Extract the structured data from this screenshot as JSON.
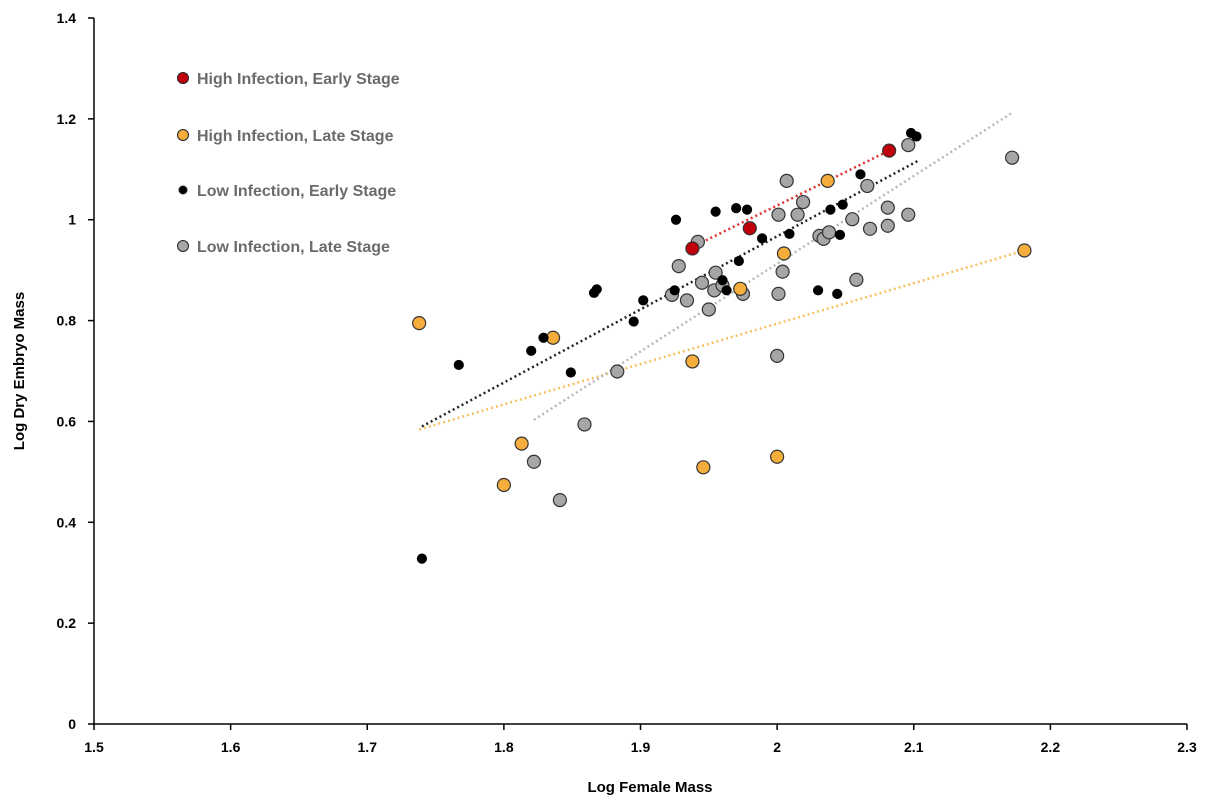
{
  "chart_data": {
    "type": "scatter",
    "title": "",
    "xlabel": "Log Female Mass",
    "ylabel": "Log Dry Embryo Mass",
    "xlim": [
      1.5,
      2.3
    ],
    "ylim": [
      0,
      1.4
    ],
    "xticks": [
      "1.5",
      "1.6",
      "1.7",
      "1.8",
      "1.9",
      "2",
      "2.1",
      "2.2",
      "2.3"
    ],
    "yticks": [
      "0",
      "0.2",
      "0.4",
      "0.6",
      "0.8",
      "1",
      "1.2",
      "1.4"
    ],
    "grid": false,
    "legend_position": "top-left",
    "series": [
      {
        "name": "High Infection, Early Stage",
        "color": "#c0000b",
        "marker_size": "large",
        "points": [
          [
            1.938,
            0.943
          ],
          [
            1.98,
            0.983
          ],
          [
            2.082,
            1.137
          ]
        ],
        "trendline": [
          [
            1.938,
            0.946
          ],
          [
            2.082,
            1.137
          ]
        ]
      },
      {
        "name": "High Infection, Late Stage",
        "color": "#f5ad3b",
        "marker_size": "large",
        "points": [
          [
            1.738,
            0.795
          ],
          [
            1.813,
            0.556
          ],
          [
            1.8,
            0.474
          ],
          [
            1.836,
            0.766
          ],
          [
            1.938,
            0.719
          ],
          [
            1.946,
            0.509
          ],
          [
            1.973,
            0.863
          ],
          [
            2.0,
            0.53
          ],
          [
            2.005,
            0.933
          ],
          [
            2.037,
            1.077
          ],
          [
            2.181,
            0.939
          ]
        ],
        "trendline": [
          [
            1.738,
            0.584
          ],
          [
            2.181,
            0.939
          ]
        ]
      },
      {
        "name": "Low Infection, Early Stage",
        "color": "#000000",
        "marker_size": "small",
        "points": [
          [
            1.74,
            0.328
          ],
          [
            1.767,
            0.712
          ],
          [
            1.82,
            0.74
          ],
          [
            1.829,
            0.766
          ],
          [
            1.849,
            0.697
          ],
          [
            1.866,
            0.855
          ],
          [
            1.868,
            0.862
          ],
          [
            1.895,
            0.798
          ],
          [
            1.902,
            0.84
          ],
          [
            1.926,
            1.0
          ],
          [
            1.925,
            0.86
          ],
          [
            1.955,
            1.016
          ],
          [
            1.96,
            0.88
          ],
          [
            1.963,
            0.86
          ],
          [
            1.97,
            1.023
          ],
          [
            1.972,
            0.918
          ],
          [
            1.978,
            1.02
          ],
          [
            1.989,
            0.963
          ],
          [
            2.009,
            0.972
          ],
          [
            2.03,
            0.86
          ],
          [
            2.039,
            1.02
          ],
          [
            2.044,
            0.853
          ],
          [
            2.046,
            0.97
          ],
          [
            2.048,
            1.03
          ],
          [
            2.061,
            1.09
          ],
          [
            2.098,
            1.172
          ],
          [
            2.102,
            1.165
          ]
        ],
        "trendline": [
          [
            1.74,
            0.59
          ],
          [
            2.104,
            1.118
          ]
        ]
      },
      {
        "name": "Low Infection, Late Stage",
        "color": "#a6a6a6",
        "marker_size": "large",
        "points": [
          [
            1.822,
            0.52
          ],
          [
            1.841,
            0.444
          ],
          [
            1.859,
            0.594
          ],
          [
            1.883,
            0.699
          ],
          [
            1.923,
            0.851
          ],
          [
            1.928,
            0.908
          ],
          [
            1.934,
            0.84
          ],
          [
            1.942,
            0.956
          ],
          [
            1.945,
            0.875
          ],
          [
            1.95,
            0.822
          ],
          [
            1.954,
            0.86
          ],
          [
            1.955,
            0.895
          ],
          [
            1.96,
            0.87
          ],
          [
            1.975,
            0.853
          ],
          [
            2.0,
            0.73
          ],
          [
            2.001,
            0.853
          ],
          [
            2.001,
            1.01
          ],
          [
            2.004,
            0.897
          ],
          [
            2.007,
            1.077
          ],
          [
            2.015,
            1.01
          ],
          [
            2.019,
            1.035
          ],
          [
            2.031,
            0.968
          ],
          [
            2.034,
            0.962
          ],
          [
            2.038,
            0.975
          ],
          [
            2.055,
            1.001
          ],
          [
            2.058,
            0.881
          ],
          [
            2.066,
            1.067
          ],
          [
            2.068,
            0.982
          ],
          [
            2.081,
            1.024
          ],
          [
            2.081,
            0.988
          ],
          [
            2.096,
            1.01
          ],
          [
            2.096,
            1.148
          ],
          [
            2.172,
            1.123
          ]
        ],
        "trendline": [
          [
            1.822,
            0.603
          ],
          [
            2.172,
            1.212
          ]
        ]
      }
    ]
  }
}
